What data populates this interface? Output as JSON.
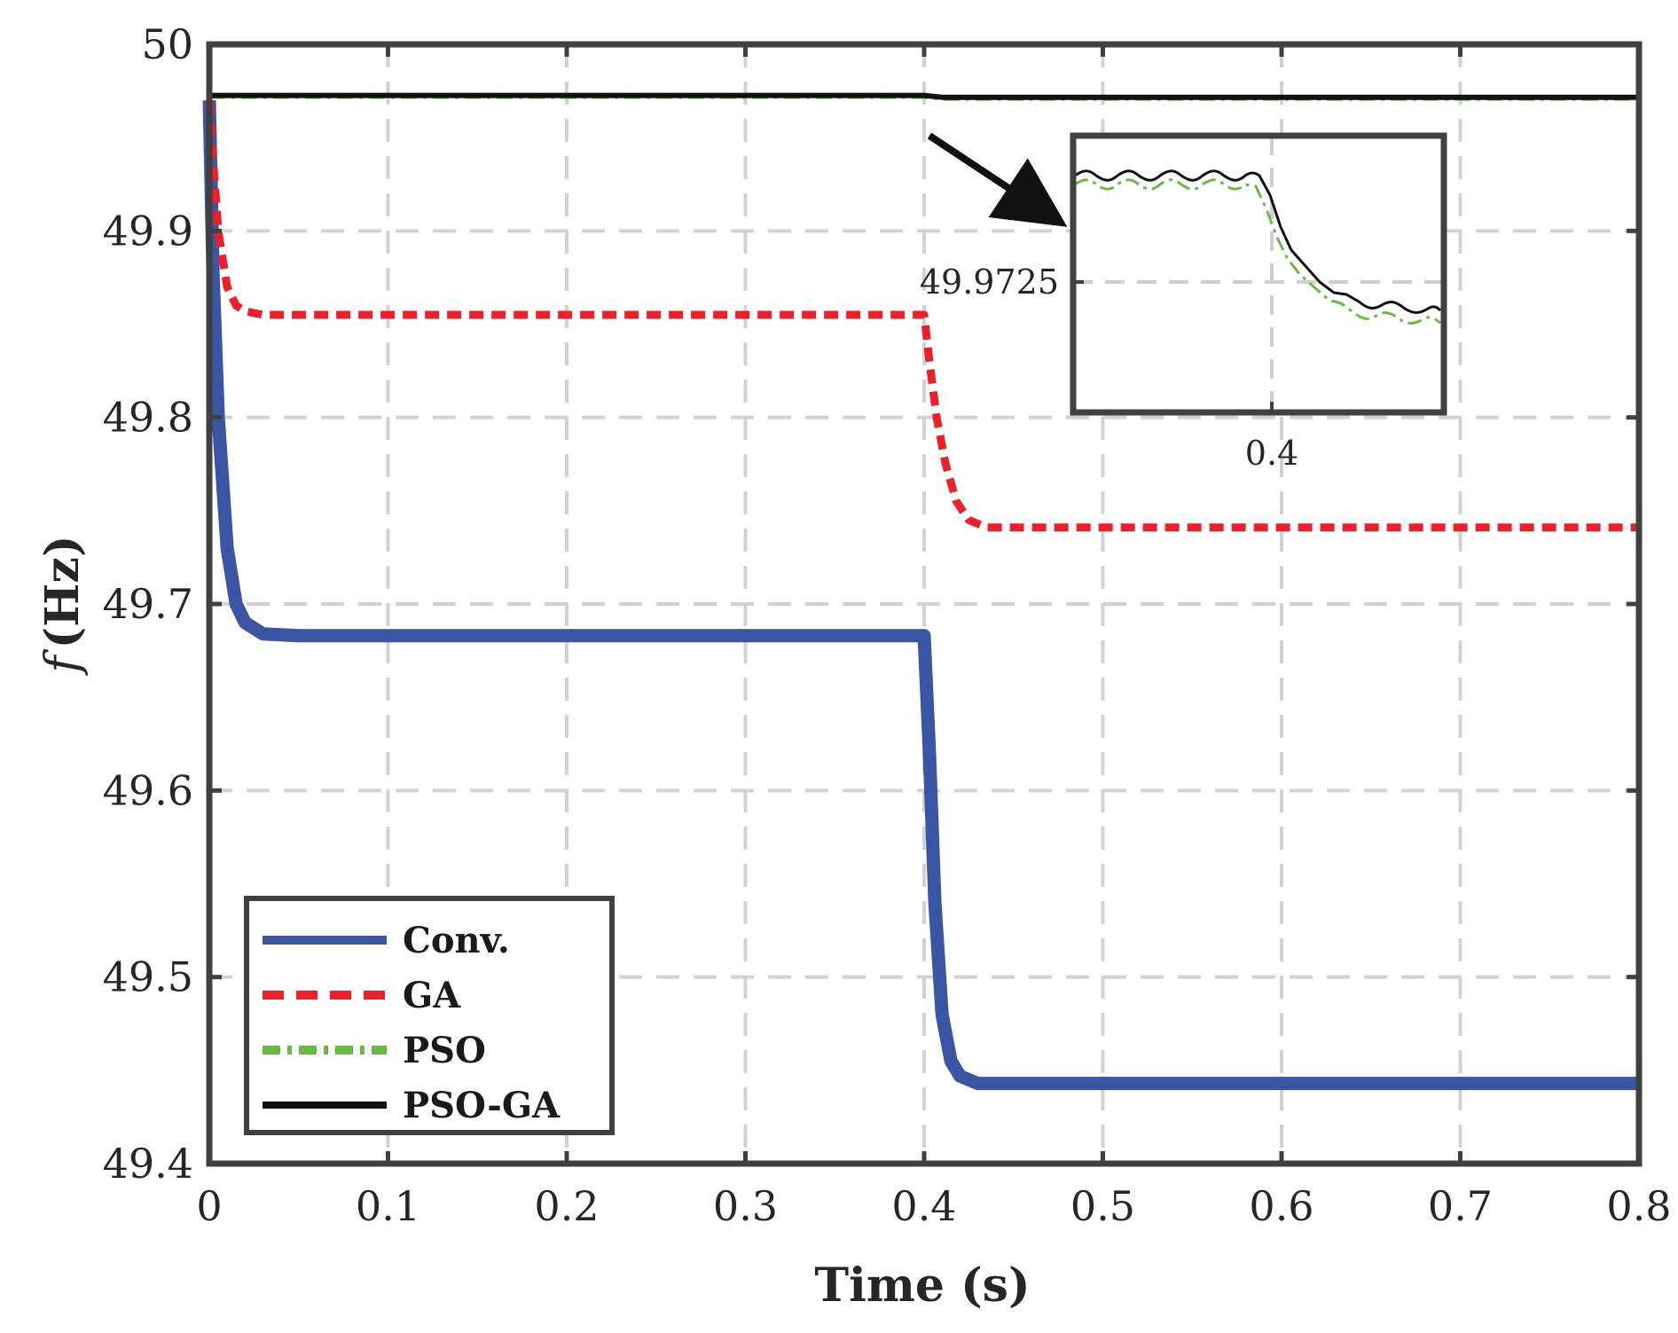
{
  "chart_data": {
    "type": "line",
    "title": "",
    "xlabel": "Time (s)",
    "ylabel_italic": "f",
    "ylabel_rest": "(Hz)",
    "xlim": [
      0,
      0.8
    ],
    "ylim": [
      49.4,
      50
    ],
    "xticks": [
      0,
      0.1,
      0.2,
      0.3,
      0.4,
      0.5,
      0.6,
      0.7,
      0.8
    ],
    "xtick_labels": [
      "0",
      "0.1",
      "0.2",
      "0.3",
      "0.4",
      "0.5",
      "0.6",
      "0.7",
      "0.8"
    ],
    "yticks": [
      49.4,
      49.5,
      49.6,
      49.7,
      49.8,
      49.9,
      50
    ],
    "ytick_labels": [
      "49.4",
      "49.5",
      "49.6",
      "49.7",
      "49.8",
      "49.9",
      "50"
    ],
    "grid": true,
    "legend_position": "bottom-left",
    "series": [
      {
        "name": "Conv.",
        "color": "#3a55a4",
        "style": "solid",
        "x": [
          0,
          0.002,
          0.005,
          0.01,
          0.015,
          0.02,
          0.03,
          0.05,
          0.1,
          0.2,
          0.3,
          0.395,
          0.4,
          0.403,
          0.406,
          0.41,
          0.415,
          0.42,
          0.43,
          0.45,
          0.5,
          0.6,
          0.7,
          0.8
        ],
        "y": [
          49.97,
          49.88,
          49.8,
          49.73,
          49.7,
          49.69,
          49.684,
          49.683,
          49.683,
          49.683,
          49.683,
          49.683,
          49.683,
          49.62,
          49.54,
          49.48,
          49.455,
          49.447,
          49.443,
          49.443,
          49.443,
          49.443,
          49.443,
          49.443
        ]
      },
      {
        "name": "GA",
        "color": "#e8212a",
        "style": "dashed",
        "x": [
          0,
          0.002,
          0.005,
          0.01,
          0.015,
          0.02,
          0.03,
          0.05,
          0.1,
          0.2,
          0.3,
          0.395,
          0.4,
          0.403,
          0.407,
          0.412,
          0.418,
          0.425,
          0.435,
          0.45,
          0.5,
          0.6,
          0.7,
          0.8
        ],
        "y": [
          49.97,
          49.94,
          49.9,
          49.87,
          49.86,
          49.857,
          49.855,
          49.855,
          49.855,
          49.855,
          49.855,
          49.855,
          49.855,
          49.83,
          49.8,
          49.775,
          49.755,
          49.745,
          49.741,
          49.741,
          49.741,
          49.741,
          49.741,
          49.741
        ]
      },
      {
        "name": "PSO",
        "color": "#6ab944",
        "style": "dashdot",
        "x": [
          0,
          0.4,
          0.41,
          0.8
        ],
        "y": [
          49.9722,
          49.9722,
          49.9712,
          49.9712
        ]
      },
      {
        "name": "PSO-GA",
        "color": "#111111",
        "style": "solid",
        "x": [
          0,
          0.4,
          0.41,
          0.8
        ],
        "y": [
          49.9726,
          49.9726,
          49.9716,
          49.9716
        ]
      }
    ],
    "inset": {
      "ytick_label": "49.9725",
      "xtick_label": "0.4"
    }
  }
}
